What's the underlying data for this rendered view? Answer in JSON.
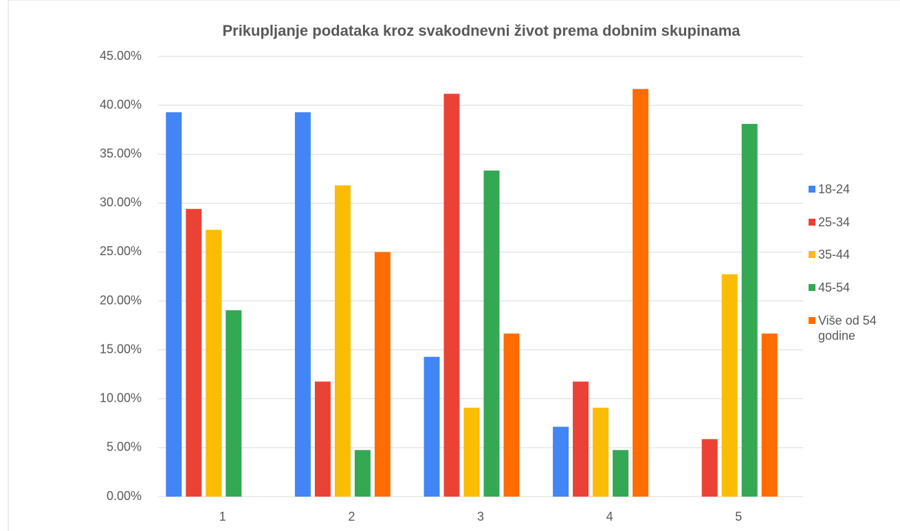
{
  "chart_data": {
    "type": "bar",
    "title": "Prikupljanje podataka kroz svakodnevni život prema dobnim skupinama",
    "categories": [
      "1",
      "2",
      "3",
      "4",
      "5"
    ],
    "series": [
      {
        "name": "18-24",
        "color": "#4285f4",
        "values": [
          39.29,
          39.29,
          14.29,
          7.14,
          0
        ]
      },
      {
        "name": "25-34",
        "color": "#ea4335",
        "values": [
          29.41,
          11.76,
          41.18,
          11.76,
          5.88
        ]
      },
      {
        "name": "35-44",
        "color": "#fbbc04",
        "values": [
          27.27,
          31.82,
          9.09,
          9.09,
          22.73
        ]
      },
      {
        "name": "45-54",
        "color": "#34a853",
        "values": [
          19.05,
          4.76,
          33.33,
          4.76,
          38.1
        ]
      },
      {
        "name": "Više od 54 godine",
        "color": "#ff6d01",
        "values": [
          0,
          25,
          16.67,
          41.67,
          16.67
        ]
      }
    ],
    "ylim": [
      0,
      45
    ],
    "yticks": [
      {
        "value": 0,
        "label": "0.00%"
      },
      {
        "value": 5,
        "label": "5.00%"
      },
      {
        "value": 10,
        "label": "10.00%"
      },
      {
        "value": 15,
        "label": "15.00%"
      },
      {
        "value": 20,
        "label": "20.00%"
      },
      {
        "value": 25,
        "label": "25.00%"
      },
      {
        "value": 30,
        "label": "30.00%"
      },
      {
        "value": 35,
        "label": "35.00%"
      },
      {
        "value": 40,
        "label": "40.00%"
      },
      {
        "value": 45,
        "label": "45.00%"
      }
    ],
    "grid": true,
    "legend": "right"
  }
}
